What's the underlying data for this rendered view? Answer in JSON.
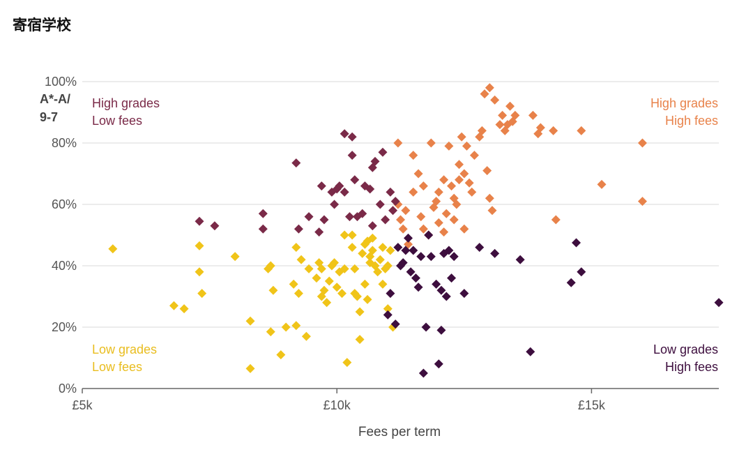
{
  "page": {
    "title": "寄宿学校"
  },
  "chart_data": {
    "type": "scatter",
    "xlabel": "Fees per term",
    "ylabel": [
      "A*-A/",
      "9-7"
    ],
    "xlim": [
      5000,
      17500
    ],
    "ylim": [
      0,
      100
    ],
    "x_ticks": [
      {
        "value": 5000,
        "label": "£5k"
      },
      {
        "value": 10000,
        "label": "£10k"
      },
      {
        "value": 15000,
        "label": "£15k"
      }
    ],
    "y_ticks": [
      {
        "value": 0,
        "label": "0%"
      },
      {
        "value": 20,
        "label": "20%"
      },
      {
        "value": 40,
        "label": "40%"
      },
      {
        "value": 60,
        "label": "60%"
      },
      {
        "value": 80,
        "label": "80%"
      },
      {
        "value": 100,
        "label": "100%"
      }
    ],
    "grid": "horizontal",
    "quadrant_labels": [
      {
        "lines": [
          "High grades",
          "Low fees"
        ],
        "color": "#7a2a48",
        "position": "top-left"
      },
      {
        "lines": [
          "High grades",
          "High fees"
        ],
        "color": "#e8824a",
        "position": "top-right"
      },
      {
        "lines": [
          "Low grades",
          "Low fees"
        ],
        "color": "#e9bd1f",
        "position": "bottom-left"
      },
      {
        "lines": [
          "Low grades",
          "High fees"
        ],
        "color": "#3d0e3e",
        "position": "bottom-right"
      }
    ],
    "series": [
      {
        "color": "#f0c419",
        "points": [
          [
            5600,
            45.5
          ],
          [
            6800,
            27
          ],
          [
            7000,
            26
          ],
          [
            7300,
            38
          ],
          [
            7300,
            46.5
          ],
          [
            7350,
            31
          ],
          [
            8000,
            43
          ],
          [
            8300,
            22
          ],
          [
            8300,
            6.5
          ],
          [
            8650,
            39
          ],
          [
            8700,
            40
          ],
          [
            8700,
            18.5
          ],
          [
            8750,
            32
          ],
          [
            8900,
            11
          ],
          [
            9000,
            20
          ],
          [
            9150,
            34
          ],
          [
            9200,
            20.5
          ],
          [
            9200,
            46
          ],
          [
            9250,
            31
          ],
          [
            9300,
            42
          ],
          [
            9400,
            17
          ],
          [
            9450,
            39
          ],
          [
            9600,
            36
          ],
          [
            9650,
            41
          ],
          [
            9700,
            39
          ],
          [
            9700,
            30
          ],
          [
            9750,
            32
          ],
          [
            9800,
            28
          ],
          [
            9850,
            35
          ],
          [
            9900,
            40
          ],
          [
            9950,
            41
          ],
          [
            10000,
            33
          ],
          [
            10050,
            38
          ],
          [
            10100,
            31
          ],
          [
            10150,
            39
          ],
          [
            10150,
            50
          ],
          [
            10200,
            8.5
          ],
          [
            10300,
            50
          ],
          [
            10300,
            46
          ],
          [
            10350,
            39
          ],
          [
            10350,
            31
          ],
          [
            10400,
            30
          ],
          [
            10450,
            25
          ],
          [
            10450,
            16
          ],
          [
            10500,
            44
          ],
          [
            10550,
            34
          ],
          [
            10550,
            47
          ],
          [
            10600,
            29
          ],
          [
            10600,
            48
          ],
          [
            10650,
            43
          ],
          [
            10650,
            41
          ],
          [
            10700,
            45
          ],
          [
            10700,
            49
          ],
          [
            10750,
            40
          ],
          [
            10800,
            38
          ],
          [
            10850,
            42
          ],
          [
            10900,
            46
          ],
          [
            10900,
            34
          ],
          [
            10950,
            39
          ],
          [
            11000,
            26
          ],
          [
            11000,
            40
          ],
          [
            11050,
            45
          ],
          [
            11100,
            20
          ]
        ]
      },
      {
        "color": "#e8824a",
        "points": [
          [
            11200,
            80
          ],
          [
            11200,
            60
          ],
          [
            11250,
            55
          ],
          [
            11300,
            52
          ],
          [
            11350,
            58
          ],
          [
            11400,
            47
          ],
          [
            11500,
            64
          ],
          [
            11500,
            76
          ],
          [
            11600,
            70
          ],
          [
            11650,
            56
          ],
          [
            11700,
            52
          ],
          [
            11700,
            66
          ],
          [
            11800,
            50
          ],
          [
            11850,
            80
          ],
          [
            11900,
            59
          ],
          [
            11950,
            61
          ],
          [
            12000,
            54
          ],
          [
            12000,
            64
          ],
          [
            12100,
            68
          ],
          [
            12100,
            51
          ],
          [
            12150,
            57
          ],
          [
            12200,
            79
          ],
          [
            12250,
            66
          ],
          [
            12300,
            55
          ],
          [
            12300,
            62
          ],
          [
            12350,
            60
          ],
          [
            12400,
            73
          ],
          [
            12400,
            68
          ],
          [
            12450,
            82
          ],
          [
            12500,
            70
          ],
          [
            12500,
            52
          ],
          [
            12550,
            79
          ],
          [
            12600,
            67
          ],
          [
            12650,
            64
          ],
          [
            12700,
            76
          ],
          [
            12800,
            82
          ],
          [
            12850,
            84
          ],
          [
            12900,
            96
          ],
          [
            12950,
            71
          ],
          [
            13000,
            98
          ],
          [
            13000,
            62
          ],
          [
            13050,
            58
          ],
          [
            13100,
            94
          ],
          [
            13200,
            86
          ],
          [
            13250,
            89
          ],
          [
            13300,
            84
          ],
          [
            13350,
            86
          ],
          [
            13400,
            92
          ],
          [
            13450,
            87
          ],
          [
            13500,
            89
          ],
          [
            13850,
            89
          ],
          [
            13950,
            83
          ],
          [
            14000,
            85
          ],
          [
            14250,
            84
          ],
          [
            14300,
            55
          ],
          [
            14800,
            84
          ],
          [
            15200,
            66.5
          ],
          [
            16000,
            80
          ],
          [
            16000,
            61
          ]
        ]
      },
      {
        "color": "#7a2a48",
        "points": [
          [
            7300,
            54.5
          ],
          [
            7600,
            53
          ],
          [
            8550,
            57
          ],
          [
            8550,
            52
          ],
          [
            9200,
            73.5
          ],
          [
            9250,
            52
          ],
          [
            9450,
            56
          ],
          [
            9650,
            51
          ],
          [
            9700,
            66
          ],
          [
            9750,
            55
          ],
          [
            9900,
            64
          ],
          [
            9950,
            60
          ],
          [
            10000,
            65
          ],
          [
            10050,
            66
          ],
          [
            10150,
            64
          ],
          [
            10150,
            83
          ],
          [
            10250,
            56
          ],
          [
            10300,
            82
          ],
          [
            10300,
            76
          ],
          [
            10350,
            68
          ],
          [
            10400,
            56
          ],
          [
            10500,
            57
          ],
          [
            10550,
            66
          ],
          [
            10650,
            65
          ],
          [
            10700,
            72
          ],
          [
            10700,
            53
          ],
          [
            10750,
            74
          ],
          [
            10850,
            60
          ],
          [
            10900,
            77
          ],
          [
            10950,
            55
          ],
          [
            11050,
            64
          ],
          [
            11100,
            58
          ],
          [
            11150,
            61
          ]
        ]
      },
      {
        "color": "#3d0e3e",
        "points": [
          [
            11000,
            24
          ],
          [
            11050,
            31
          ],
          [
            11150,
            21
          ],
          [
            11200,
            46
          ],
          [
            11250,
            40
          ],
          [
            11300,
            41
          ],
          [
            11350,
            45
          ],
          [
            11400,
            49
          ],
          [
            11450,
            38
          ],
          [
            11500,
            45
          ],
          [
            11550,
            36
          ],
          [
            11600,
            33
          ],
          [
            11650,
            43
          ],
          [
            11700,
            5
          ],
          [
            11750,
            20
          ],
          [
            11800,
            50
          ],
          [
            11850,
            43
          ],
          [
            11950,
            34
          ],
          [
            12000,
            8
          ],
          [
            12050,
            32
          ],
          [
            12050,
            19
          ],
          [
            12100,
            44
          ],
          [
            12150,
            30
          ],
          [
            12200,
            45
          ],
          [
            12250,
            36
          ],
          [
            12300,
            43
          ],
          [
            12500,
            31
          ],
          [
            12800,
            46
          ],
          [
            13100,
            44
          ],
          [
            13600,
            42
          ],
          [
            13800,
            12
          ],
          [
            14600,
            34.5
          ],
          [
            14700,
            47.5
          ],
          [
            14800,
            38
          ],
          [
            17500,
            28
          ]
        ]
      }
    ]
  }
}
